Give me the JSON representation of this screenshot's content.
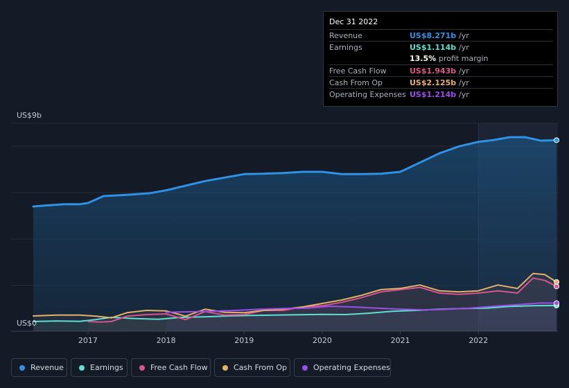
{
  "tooltip": {
    "date": "Dec 31 2022",
    "rows": [
      {
        "label": "Revenue",
        "value": "US$8.271b",
        "unit": "/yr",
        "color": "#2e93e6"
      },
      {
        "label": "Earnings",
        "value": "US$1.114b",
        "unit": "/yr",
        "color": "#5de0d0"
      },
      {
        "label": "",
        "value": "13.5%",
        "unit": "profit margin",
        "color": "#ffffff"
      },
      {
        "label": "Free Cash Flow",
        "value": "US$1.943b",
        "unit": "/yr",
        "color": "#d9558d"
      },
      {
        "label": "Cash From Op",
        "value": "US$2.125b",
        "unit": "/yr",
        "color": "#e7b16b"
      },
      {
        "label": "Operating Expenses",
        "value": "US$1.214b",
        "unit": "/yr",
        "color": "#9b4fe8"
      }
    ]
  },
  "legend": [
    {
      "label": "Revenue",
      "color": "#2e93e6"
    },
    {
      "label": "Earnings",
      "color": "#5de0d0"
    },
    {
      "label": "Free Cash Flow",
      "color": "#d9558d"
    },
    {
      "label": "Cash From Op",
      "color": "#e7b16b"
    },
    {
      "label": "Operating Expenses",
      "color": "#9b4fe8"
    }
  ],
  "chart_data": {
    "type": "line",
    "title": "",
    "ylabel": "",
    "y_top_label": "US$9b",
    "y_bottom_label": "US$0",
    "ylim": [
      0,
      9
    ],
    "xlim": [
      2016.3,
      2023.0
    ],
    "xticks": [
      2017,
      2018,
      2019,
      2020,
      2021,
      2022
    ],
    "xtick_labels": [
      "2017",
      "2018",
      "2019",
      "2020",
      "2021",
      "2022"
    ],
    "highlight_from": 2022.0,
    "series": [
      {
        "name": "Revenue",
        "color": "#2e93e6",
        "width": 3,
        "x": [
          2016.3,
          2016.5,
          2016.7,
          2016.9,
          2017.0,
          2017.2,
          2017.5,
          2017.8,
          2018.0,
          2018.25,
          2018.5,
          2018.75,
          2019.0,
          2019.25,
          2019.5,
          2019.75,
          2020.0,
          2020.25,
          2020.5,
          2020.75,
          2021.0,
          2021.25,
          2021.5,
          2021.75,
          2022.0,
          2022.2,
          2022.4,
          2022.6,
          2022.8,
          2023.0
        ],
        "y": [
          5.4,
          5.45,
          5.5,
          5.5,
          5.55,
          5.85,
          5.9,
          5.98,
          6.1,
          6.3,
          6.5,
          6.65,
          6.8,
          6.82,
          6.85,
          6.9,
          6.9,
          6.8,
          6.8,
          6.82,
          6.9,
          7.3,
          7.7,
          8.0,
          8.2,
          8.28,
          8.4,
          8.4,
          8.25,
          8.27
        ]
      },
      {
        "name": "Earnings",
        "color": "#5de0d0",
        "width": 2,
        "x": [
          2016.3,
          2016.6,
          2016.9,
          2017.1,
          2017.3,
          2017.6,
          2017.9,
          2018.2,
          2018.5,
          2018.8,
          2019.1,
          2019.4,
          2019.7,
          2020.0,
          2020.3,
          2020.6,
          2020.9,
          2021.2,
          2021.5,
          2021.8,
          2022.1,
          2022.4,
          2022.7,
          2023.0
        ],
        "y": [
          0.42,
          0.44,
          0.43,
          0.5,
          0.6,
          0.55,
          0.52,
          0.6,
          0.62,
          0.66,
          0.68,
          0.7,
          0.71,
          0.73,
          0.72,
          0.78,
          0.86,
          0.9,
          0.95,
          0.98,
          1.0,
          1.07,
          1.1,
          1.114
        ]
      },
      {
        "name": "Free Cash Flow",
        "color": "#d9558d",
        "width": 2,
        "x": [
          2017.0,
          2017.15,
          2017.3,
          2017.5,
          2017.75,
          2018.0,
          2018.25,
          2018.5,
          2018.75,
          2019.0,
          2019.25,
          2019.5,
          2019.75,
          2020.0,
          2020.25,
          2020.5,
          2020.75,
          2021.0,
          2021.25,
          2021.5,
          2021.75,
          2022.0,
          2022.25,
          2022.5,
          2022.7,
          2022.85,
          2023.0
        ],
        "y": [
          0.42,
          0.4,
          0.42,
          0.65,
          0.72,
          0.75,
          0.5,
          0.85,
          0.7,
          0.72,
          0.9,
          0.9,
          1.05,
          1.1,
          1.25,
          1.45,
          1.7,
          1.8,
          1.9,
          1.65,
          1.6,
          1.65,
          1.75,
          1.65,
          2.3,
          2.2,
          1.94
        ]
      },
      {
        "name": "Cash From Op",
        "color": "#e7b16b",
        "width": 2,
        "x": [
          2016.3,
          2016.6,
          2016.9,
          2017.1,
          2017.3,
          2017.5,
          2017.75,
          2018.0,
          2018.25,
          2018.5,
          2018.75,
          2019.0,
          2019.25,
          2019.5,
          2019.75,
          2020.0,
          2020.25,
          2020.5,
          2020.75,
          2021.0,
          2021.25,
          2021.5,
          2021.75,
          2022.0,
          2022.25,
          2022.5,
          2022.7,
          2022.85,
          2023.0
        ],
        "y": [
          0.66,
          0.7,
          0.7,
          0.65,
          0.58,
          0.8,
          0.9,
          0.88,
          0.65,
          0.95,
          0.82,
          0.8,
          0.9,
          0.95,
          1.05,
          1.2,
          1.35,
          1.55,
          1.8,
          1.85,
          2.0,
          1.75,
          1.7,
          1.75,
          2.0,
          1.85,
          2.5,
          2.45,
          2.13
        ]
      },
      {
        "name": "Operating Expenses",
        "color": "#9b4fe8",
        "width": 2,
        "x": [
          2018.0,
          2018.3,
          2018.6,
          2018.9,
          2019.2,
          2019.5,
          2019.8,
          2020.1,
          2020.4,
          2020.7,
          2021.0,
          2021.3,
          2021.6,
          2021.9,
          2022.2,
          2022.5,
          2022.8,
          2023.0
        ],
        "y": [
          0.82,
          0.84,
          0.86,
          0.9,
          0.95,
          0.98,
          1.0,
          1.08,
          1.05,
          1.0,
          0.95,
          0.92,
          0.95,
          1.0,
          1.08,
          1.15,
          1.22,
          1.214
        ]
      }
    ]
  }
}
